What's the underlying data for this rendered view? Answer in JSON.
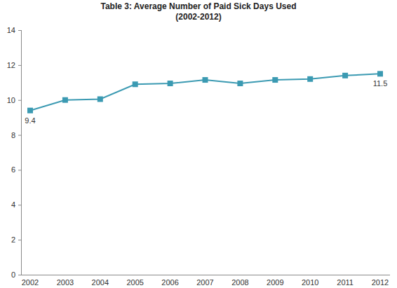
{
  "chart_data": {
    "type": "line",
    "title": "Table 3: Average Number of Paid Sick Days Used",
    "subtitle": "(2002-2012)",
    "categories": [
      "2002",
      "2003",
      "2004",
      "2005",
      "2006",
      "2007",
      "2008",
      "2009",
      "2010",
      "2011",
      "2012"
    ],
    "values": [
      9.4,
      10.0,
      10.05,
      10.9,
      10.95,
      11.15,
      10.95,
      11.15,
      11.2,
      11.4,
      11.5
    ],
    "value_labels": [
      "9.4",
      null,
      null,
      null,
      null,
      null,
      null,
      null,
      null,
      null,
      "11.5"
    ],
    "color": "#3b9ab2",
    "marker": "square",
    "ylim": [
      0,
      14
    ],
    "yticks": [
      0,
      2,
      4,
      6,
      8,
      10,
      12,
      14
    ],
    "grid": false
  }
}
